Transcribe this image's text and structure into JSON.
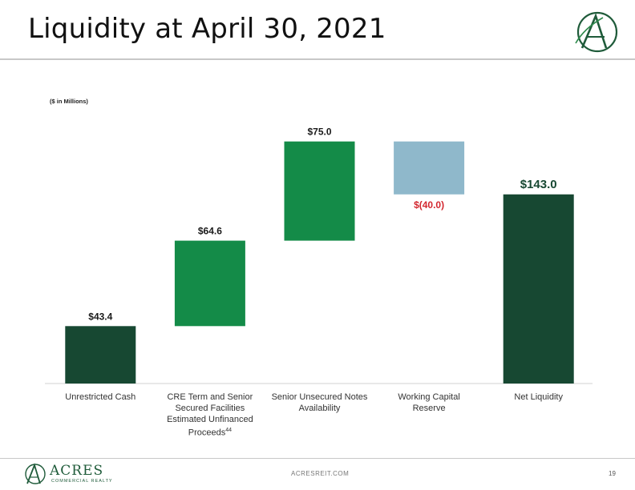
{
  "page": {
    "title": "Liquidity at April 30, 2021",
    "units_note": "($ in Millions)",
    "website": "ACRESREIT.COM",
    "page_number": "19",
    "brand_name": "ACRES",
    "brand_sub": "COMMERCIAL REALTY",
    "footnote_marker": "44"
  },
  "colors": {
    "dark_green": "#174832",
    "mid_green": "#148b48",
    "light_blue": "#8fb8cb",
    "negative_red": "#d3272f",
    "label_green": "#174832"
  },
  "chart_data": {
    "type": "bar",
    "subtype": "waterfall",
    "categories": [
      "Unrestricted Cash",
      "CRE Term and Senior Secured Facilities Estimated Unfinanced Proceeds",
      "Senior Unsecured Notes Availability",
      "Working Capital Reserve",
      "Net Liquidity"
    ],
    "category_lines": [
      [
        "Unrestricted Cash"
      ],
      [
        "CRE Term and Senior",
        "Secured Facilities",
        "Estimated Unfinanced",
        "Proceeds"
      ],
      [
        "Senior Unsecured Notes",
        "Availability"
      ],
      [
        "Working Capital",
        "Reserve"
      ],
      [
        "Net Liquidity"
      ]
    ],
    "values": [
      43.4,
      64.6,
      75.0,
      -40.0,
      143.0
    ],
    "data_labels": [
      "$43.4",
      "$64.6",
      "$75.0",
      "$(40.0)",
      "$143.0"
    ],
    "bar_kinds": [
      "total",
      "increase",
      "increase",
      "decrease",
      "total"
    ],
    "ylim": [
      0,
      183
    ],
    "grid": false,
    "legend": "none"
  }
}
